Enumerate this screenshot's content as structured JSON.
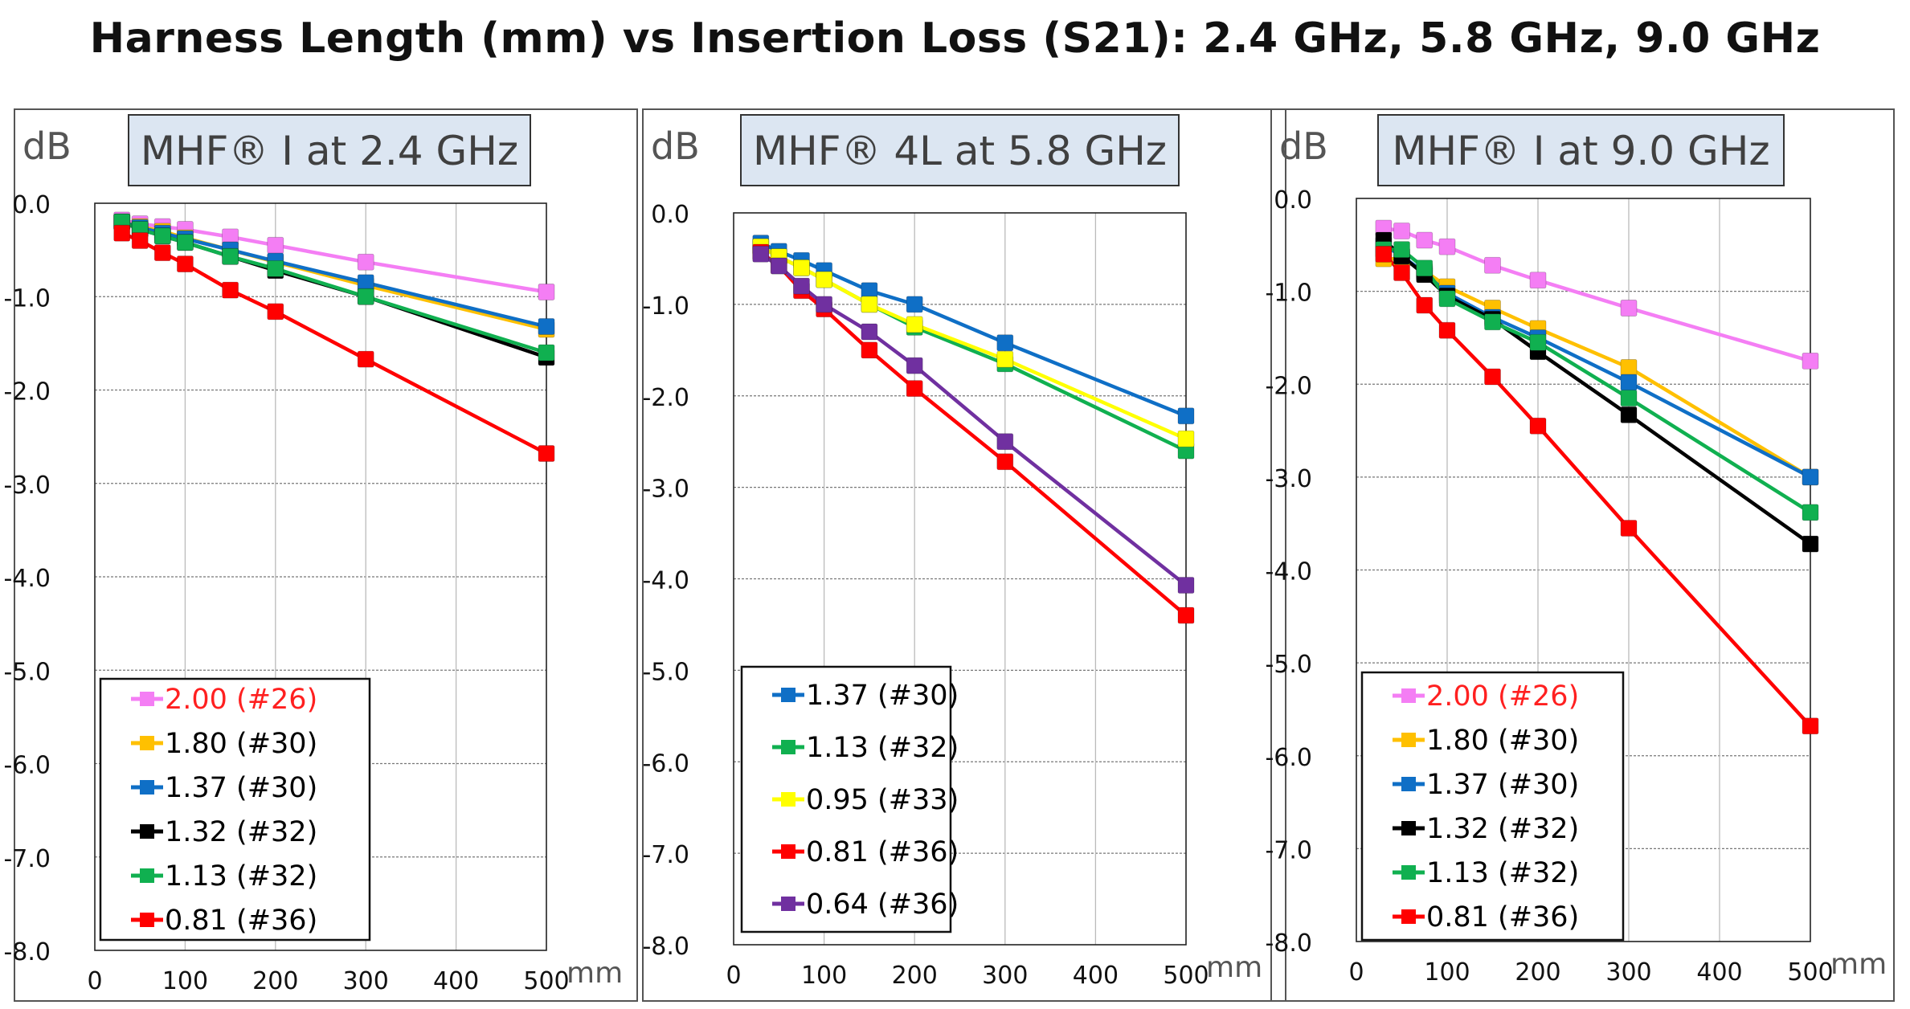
{
  "page_title": "Harness Length (mm) vs Insertion Loss (S21): 2.4 GHz, 5.8 GHz, 9.0 GHz",
  "chart_data": [
    {
      "type": "line",
      "title": "MHF® I at 2.4 GHz",
      "ylabel": "dB",
      "xlabel": "mm",
      "xlim": [
        0,
        500
      ],
      "ylim": [
        -8.0,
        0.0
      ],
      "xticks": [
        "0",
        "100",
        "200",
        "300",
        "400",
        "500"
      ],
      "yticks": [
        "0.0",
        "-1.0",
        "-2.0",
        "-3.0",
        "-4.0",
        "-5.0",
        "-6.0",
        "-7.0",
        "-8.0"
      ],
      "grid": true,
      "legend_position": "bottom-left",
      "x": [
        30,
        50,
        75,
        100,
        150,
        200,
        300,
        500
      ],
      "series": [
        {
          "name": "2.00 (#26)",
          "color": "#f47ef4",
          "label_color": "#ff2020",
          "values": [
            -0.18,
            -0.22,
            -0.25,
            -0.28,
            -0.36,
            -0.45,
            -0.63,
            -0.95
          ]
        },
        {
          "name": "1.80 (#30)",
          "color": "#ffc000",
          "label_color": "#000000",
          "values": [
            -0.2,
            -0.25,
            -0.3,
            -0.37,
            -0.5,
            -0.63,
            -0.88,
            -1.35
          ]
        },
        {
          "name": "1.37 (#30)",
          "color": "#0f6fc6",
          "label_color": "#000000",
          "values": [
            -0.2,
            -0.26,
            -0.32,
            -0.38,
            -0.5,
            -0.62,
            -0.85,
            -1.32
          ]
        },
        {
          "name": "1.32 (#32)",
          "color": "#000000",
          "label_color": "#000000",
          "values": [
            -0.2,
            -0.28,
            -0.35,
            -0.42,
            -0.57,
            -0.72,
            -1.0,
            -1.65
          ]
        },
        {
          "name": "1.13 (#32)",
          "color": "#10b050",
          "label_color": "#000000",
          "values": [
            -0.2,
            -0.28,
            -0.35,
            -0.42,
            -0.57,
            -0.7,
            -1.0,
            -1.6
          ]
        },
        {
          "name": "0.81 (#36)",
          "color": "#ff0000",
          "label_color": "#000000",
          "values": [
            -0.32,
            -0.4,
            -0.53,
            -0.65,
            -0.93,
            -1.16,
            -1.67,
            -2.68
          ]
        }
      ]
    },
    {
      "type": "line",
      "title": "MHF® 4L at 5.8 GHz",
      "ylabel": "dB",
      "xlabel": "mm",
      "xlim": [
        0,
        500
      ],
      "ylim": [
        -8.0,
        0.0
      ],
      "xticks": [
        "0",
        "100",
        "200",
        "300",
        "400",
        "500"
      ],
      "yticks": [
        "0.0",
        "-1.0",
        "-2.0",
        "-3.0",
        "-4.0",
        "-5.0",
        "-6.0",
        "-7.0",
        "-8.0"
      ],
      "grid": true,
      "legend_position": "bottom-left",
      "x": [
        30,
        50,
        75,
        100,
        150,
        200,
        300,
        500
      ],
      "series": [
        {
          "name": "1.37 (#30)",
          "color": "#0f6fc6",
          "label_color": "#000000",
          "values": [
            -0.33,
            -0.42,
            -0.52,
            -0.63,
            -0.85,
            -1.0,
            -1.42,
            -2.22
          ]
        },
        {
          "name": "1.13 (#32)",
          "color": "#10b050",
          "label_color": "#000000",
          "values": [
            -0.37,
            -0.48,
            -0.6,
            -0.73,
            -1.0,
            -1.25,
            -1.65,
            -2.6
          ]
        },
        {
          "name": "0.95 (#33)",
          "color": "#ffff00",
          "label_color": "#000000",
          "values": [
            -0.37,
            -0.48,
            -0.6,
            -0.73,
            -1.0,
            -1.22,
            -1.6,
            -2.47
          ]
        },
        {
          "name": "0.81 (#36)",
          "color": "#ff0000",
          "label_color": "#000000",
          "values": [
            -0.43,
            -0.58,
            -0.85,
            -1.05,
            -1.5,
            -1.92,
            -2.72,
            -4.4
          ]
        },
        {
          "name": "0.64 (#36)",
          "color": "#7030a0",
          "label_color": "#000000",
          "values": [
            -0.45,
            -0.58,
            -0.8,
            -1.0,
            -1.3,
            -1.67,
            -2.5,
            -4.07
          ]
        }
      ]
    },
    {
      "type": "line",
      "title": "MHF® I at 9.0 GHz",
      "ylabel": "dB",
      "xlabel": "mm",
      "xlim": [
        0,
        500
      ],
      "ylim": [
        -8.0,
        0.0
      ],
      "xticks": [
        "0",
        "100",
        "200",
        "300",
        "400",
        "500"
      ],
      "yticks": [
        "0.0",
        "-1.0",
        "-2.0",
        "-3.0",
        "-4.0",
        "-5.0",
        "-6.0",
        "-7.0",
        "-8.0"
      ],
      "grid": true,
      "legend_position": "bottom-left",
      "x": [
        30,
        50,
        75,
        100,
        150,
        200,
        300,
        500
      ],
      "series": [
        {
          "name": "2.00 (#26)",
          "color": "#f47ef4",
          "label_color": "#ff2020",
          "values": [
            -0.32,
            -0.35,
            -0.45,
            -0.52,
            -0.72,
            -0.88,
            -1.18,
            -1.75
          ]
        },
        {
          "name": "1.80 (#30)",
          "color": "#ffc000",
          "label_color": "#000000",
          "values": [
            -0.65,
            -0.65,
            -0.78,
            -0.95,
            -1.18,
            -1.4,
            -1.82,
            -3.0
          ]
        },
        {
          "name": "1.37 (#30)",
          "color": "#0f6fc6",
          "label_color": "#000000",
          "values": [
            -0.5,
            -0.62,
            -0.8,
            -1.02,
            -1.28,
            -1.5,
            -1.98,
            -3.0
          ]
        },
        {
          "name": "1.32 (#32)",
          "color": "#000000",
          "label_color": "#000000",
          "values": [
            -0.45,
            -0.62,
            -0.82,
            -1.05,
            -1.3,
            -1.65,
            -2.33,
            -3.72
          ]
        },
        {
          "name": "1.13 (#32)",
          "color": "#10b050",
          "label_color": "#000000",
          "values": [
            -0.55,
            -0.55,
            -0.75,
            -1.08,
            -1.33,
            -1.55,
            -2.15,
            -3.38
          ]
        },
        {
          "name": "0.81 (#36)",
          "color": "#ff0000",
          "label_color": "#000000",
          "values": [
            -0.6,
            -0.8,
            -1.15,
            -1.42,
            -1.92,
            -2.45,
            -3.55,
            -5.68
          ]
        }
      ]
    }
  ]
}
